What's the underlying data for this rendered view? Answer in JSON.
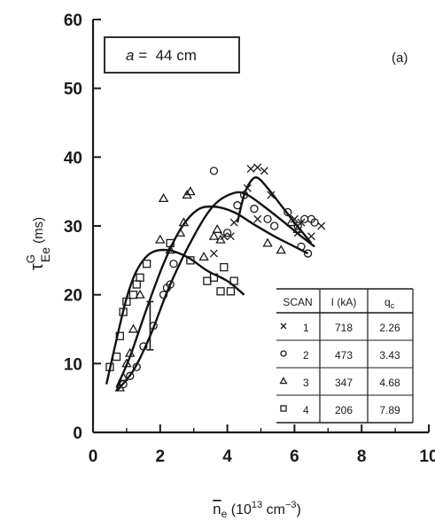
{
  "chart_data": {
    "type": "scatter",
    "panel_label": "(a)",
    "inset_label": {
      "a_symbol": "a",
      "rest": " =  44 cm"
    },
    "xlabel": {
      "base": "n",
      "sub": "e",
      "unit_pre": " (10",
      "unit_exp1": "13",
      "unit_mid": " cm",
      "unit_exp2": "−3",
      "unit_post": ")"
    },
    "ylabel": {
      "base": "τ",
      "sup": "G",
      "sub": "Ee",
      "unit": " (ms)"
    },
    "xlim": [
      0,
      10
    ],
    "ylim": [
      0,
      60
    ],
    "xticks": [
      "0",
      "2",
      "4",
      "6",
      "8",
      "10"
    ],
    "yticks": [
      "0",
      "10",
      "20",
      "30",
      "40",
      "50",
      "60"
    ],
    "series": [
      {
        "marker": "x",
        "points": [
          [
            4.7,
            38.3
          ],
          [
            4.9,
            38.5
          ],
          [
            5.1,
            38.0
          ],
          [
            4.6,
            35.5
          ],
          [
            5.3,
            34.5
          ],
          [
            4.2,
            30.5
          ],
          [
            4.9,
            31.0
          ],
          [
            3.9,
            28.5
          ],
          [
            4.1,
            28.5
          ],
          [
            6.0,
            31.0
          ],
          [
            6.2,
            30.5
          ],
          [
            6.8,
            30.0
          ],
          [
            6.1,
            29.0
          ],
          [
            6.5,
            28.5
          ],
          [
            3.6,
            26.0
          ]
        ],
        "curve": [
          [
            4.3,
            30.5
          ],
          [
            4.5,
            34.5
          ],
          [
            4.7,
            36.5
          ],
          [
            4.9,
            37.0
          ],
          [
            5.2,
            35.5
          ],
          [
            5.6,
            33.0
          ],
          [
            6.0,
            30.5
          ],
          [
            6.5,
            27.5
          ]
        ]
      },
      {
        "marker": "circle",
        "points": [
          [
            0.9,
            7.0
          ],
          [
            1.1,
            8.2
          ],
          [
            1.3,
            9.5
          ],
          [
            1.5,
            12.5
          ],
          [
            1.8,
            15.5
          ],
          [
            2.1,
            20.0
          ],
          [
            2.2,
            21.0
          ],
          [
            2.3,
            21.5
          ],
          [
            2.4,
            24.5
          ],
          [
            3.6,
            38.0
          ],
          [
            4.0,
            29.0
          ],
          [
            4.3,
            33.0
          ],
          [
            4.5,
            34.5
          ],
          [
            4.8,
            32.5
          ],
          [
            5.2,
            31.0
          ],
          [
            5.4,
            30.0
          ],
          [
            5.8,
            32.0
          ],
          [
            6.1,
            30.0
          ],
          [
            6.3,
            31.0
          ],
          [
            6.5,
            31.0
          ],
          [
            6.6,
            30.5
          ],
          [
            6.4,
            26.0
          ],
          [
            6.2,
            27.0
          ]
        ],
        "curve": [
          [
            0.7,
            6.0
          ],
          [
            1.2,
            9.0
          ],
          [
            1.7,
            14.0
          ],
          [
            2.3,
            21.5
          ],
          [
            3.0,
            28.5
          ],
          [
            3.6,
            33.0
          ],
          [
            4.2,
            34.8
          ],
          [
            4.6,
            34.5
          ],
          [
            5.1,
            32.8
          ],
          [
            5.7,
            30.5
          ],
          [
            6.2,
            28.5
          ],
          [
            6.6,
            27.0
          ]
        ]
      },
      {
        "marker": "triangle",
        "points": [
          [
            0.8,
            6.5
          ],
          [
            0.9,
            8.0
          ],
          [
            1.0,
            10.0
          ],
          [
            1.1,
            11.5
          ],
          [
            1.2,
            15.0
          ],
          [
            1.4,
            20.0
          ],
          [
            2.0,
            28.0
          ],
          [
            2.1,
            34.0
          ],
          [
            2.3,
            26.5
          ],
          [
            2.6,
            29.0
          ],
          [
            2.7,
            30.5
          ],
          [
            2.8,
            34.5
          ],
          [
            2.9,
            35.0
          ],
          [
            3.3,
            25.5
          ],
          [
            3.6,
            28.5
          ],
          [
            3.7,
            29.5
          ],
          [
            3.8,
            28.0
          ],
          [
            5.2,
            27.5
          ],
          [
            5.6,
            26.5
          ],
          [
            5.9,
            30.5
          ],
          [
            6.1,
            29.5
          ]
        ],
        "errorbar": {
          "x": 1.7,
          "y": 15.0,
          "low": 12.0,
          "high": 19.0
        },
        "curve": [
          [
            0.7,
            6.5
          ],
          [
            1.1,
            11.0
          ],
          [
            1.6,
            18.0
          ],
          [
            2.1,
            24.5
          ],
          [
            2.6,
            29.5
          ],
          [
            3.1,
            32.3
          ],
          [
            3.6,
            32.8
          ],
          [
            4.2,
            32.0
          ],
          [
            4.8,
            30.2
          ],
          [
            5.4,
            28.5
          ],
          [
            6.0,
            27.0
          ],
          [
            6.4,
            26.0
          ]
        ]
      },
      {
        "marker": "square",
        "points": [
          [
            0.5,
            9.5
          ],
          [
            0.7,
            11.0
          ],
          [
            0.8,
            14.0
          ],
          [
            0.9,
            17.5
          ],
          [
            1.0,
            19.0
          ],
          [
            1.2,
            20.0
          ],
          [
            1.3,
            21.5
          ],
          [
            1.4,
            22.5
          ],
          [
            1.6,
            24.5
          ],
          [
            2.3,
            27.5
          ],
          [
            2.9,
            25.0
          ],
          [
            3.4,
            22.0
          ],
          [
            3.6,
            22.5
          ],
          [
            3.9,
            24.0
          ],
          [
            4.2,
            22.0
          ],
          [
            4.1,
            20.5
          ],
          [
            3.8,
            20.5
          ]
        ],
        "curve": [
          [
            0.4,
            7.0
          ],
          [
            0.7,
            13.5
          ],
          [
            1.0,
            19.5
          ],
          [
            1.3,
            23.5
          ],
          [
            1.7,
            26.0
          ],
          [
            2.2,
            26.5
          ],
          [
            2.8,
            25.5
          ],
          [
            3.4,
            23.5
          ],
          [
            4.0,
            22.0
          ],
          [
            4.5,
            20.0
          ]
        ]
      }
    ],
    "table": {
      "headers": [
        "SCAN",
        "I (kA)",
        "q"
      ],
      "header_q_sub": "c",
      "rows": [
        {
          "marker": "x",
          "scan": "1",
          "I": "718",
          "q": "2.26"
        },
        {
          "marker": "circle",
          "scan": "2",
          "I": "473",
          "q": "3.43"
        },
        {
          "marker": "triangle",
          "scan": "3",
          "I": "347",
          "q": "4.68"
        },
        {
          "marker": "square",
          "scan": "4",
          "I": "206",
          "q": "7.89"
        }
      ]
    }
  }
}
